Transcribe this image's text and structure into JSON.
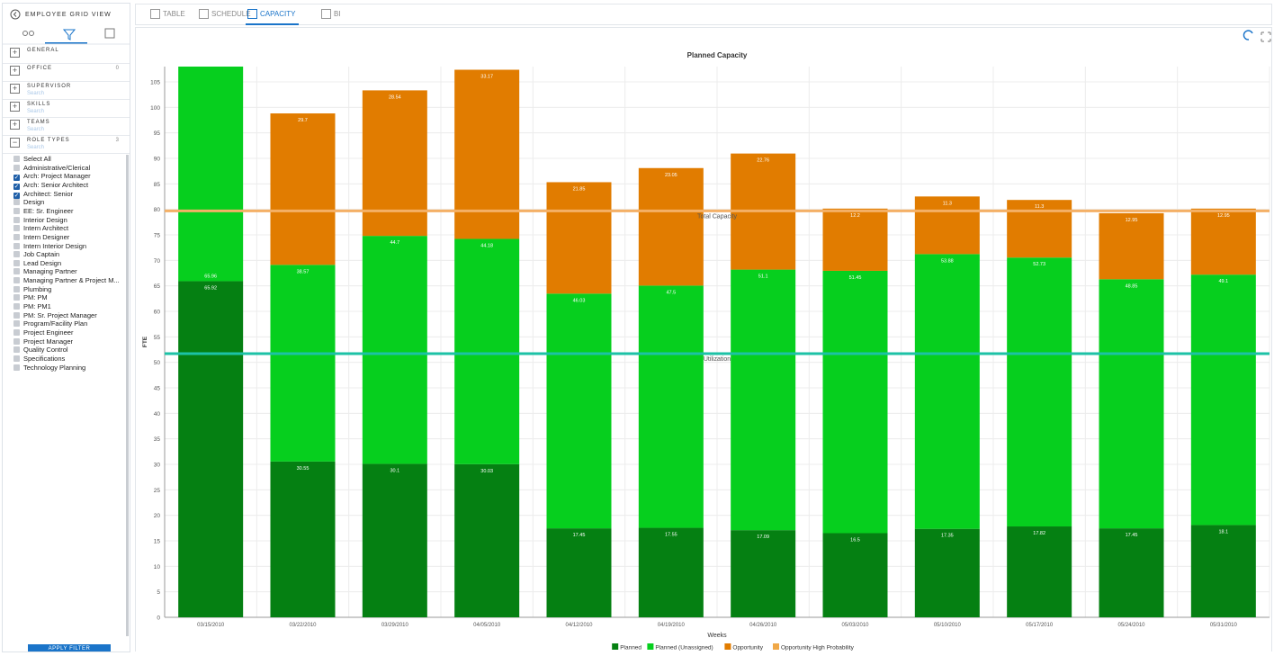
{
  "sidebar": {
    "title": "EMPLOYEE GRID VIEW",
    "sections": [
      {
        "label": "GENERAL"
      },
      {
        "label": "OFFICE",
        "count": 0
      },
      {
        "label": "SUPERVISOR",
        "placeholder": "Search"
      },
      {
        "label": "SKILLS",
        "placeholder": "Search"
      },
      {
        "label": "TEAMS",
        "placeholder": "Search"
      },
      {
        "label": "ROLE TYPES",
        "placeholder": "Search",
        "count": 3,
        "expanded": true
      }
    ],
    "items": [
      {
        "label": "Select All",
        "checked": false
      },
      {
        "label": "Administrative/Clerical",
        "checked": false
      },
      {
        "label": "Arch: Project Manager",
        "checked": true
      },
      {
        "label": "Arch: Senior Architect",
        "checked": true
      },
      {
        "label": "Architect: Senior",
        "checked": true
      },
      {
        "label": "Design",
        "checked": false
      },
      {
        "label": "EE: Sr. Engineer",
        "checked": false
      },
      {
        "label": "Interior Design",
        "checked": false
      },
      {
        "label": "Intern Architect",
        "checked": false
      },
      {
        "label": "Intern Designer",
        "checked": false
      },
      {
        "label": "Intern Interior Design",
        "checked": false
      },
      {
        "label": "Job Captain",
        "checked": false
      },
      {
        "label": "Lead Design",
        "checked": false
      },
      {
        "label": "Managing Partner",
        "checked": false
      },
      {
        "label": "Managing Partner & Project M...",
        "checked": false
      },
      {
        "label": "Plumbing",
        "checked": false
      },
      {
        "label": "PM: PM",
        "checked": false
      },
      {
        "label": "PM: PM1",
        "checked": false
      },
      {
        "label": "PM: Sr. Project Manager",
        "checked": false
      },
      {
        "label": "Program/Facility Plan",
        "checked": false
      },
      {
        "label": "Project Engineer",
        "checked": false
      },
      {
        "label": "Project Manager",
        "checked": false
      },
      {
        "label": "Quality Control",
        "checked": false
      },
      {
        "label": "Specifications",
        "checked": false
      },
      {
        "label": "Technology Planning",
        "checked": false
      }
    ],
    "button": "APPLY FILTER"
  },
  "tabs": [
    {
      "label": "TABLE",
      "active": false
    },
    {
      "label": "SCHEDULE",
      "active": false
    },
    {
      "label": "CAPACITY",
      "active": true
    },
    {
      "label": "BI",
      "active": false
    }
  ],
  "chart_data": {
    "type": "bar",
    "stacked": true,
    "title": "Planned Capacity",
    "xlabel": "Weeks",
    "ylabel": "FTE",
    "categories": [
      "03/15/2010",
      "03/22/2010",
      "03/29/2010",
      "04/05/2010",
      "04/12/2010",
      "04/19/2010",
      "04/26/2010",
      "05/03/2010",
      "05/10/2010",
      "05/17/2010",
      "05/24/2010",
      "05/31/2010"
    ],
    "series": [
      {
        "name": "Planned",
        "color": "#058012",
        "values": [
          65.92,
          30.55,
          30.1,
          30.03,
          17.45,
          17.55,
          17.09,
          16.5,
          17.35,
          17.82,
          17.45,
          18.1
        ]
      },
      {
        "name": "Planned (Unassigned)",
        "color": "#06cf1e",
        "values": [
          65.96,
          38.57,
          44.7,
          44.18,
          46.03,
          47.5,
          51.1,
          51.45,
          53.88,
          52.73,
          48.85,
          49.1
        ]
      },
      {
        "name": "Opportunity",
        "color": "#e17c00",
        "values": [
          null,
          29.7,
          28.54,
          33.17,
          21.85,
          23.05,
          22.76,
          12.2,
          11.3,
          11.3,
          12.95,
          12.95
        ]
      },
      {
        "name": "Opportunity High Probability",
        "color": "#f0a848",
        "values": [
          null,
          null,
          null,
          null,
          null,
          null,
          null,
          null,
          null,
          null,
          null,
          null
        ]
      }
    ],
    "reference_lines": [
      {
        "label": "Total Capacity",
        "value": 79.7,
        "color": "#f4b066"
      },
      {
        "label": "Utilization",
        "value": 51.7,
        "color": "#1cc2a6"
      }
    ],
    "ylim": [
      0,
      108
    ],
    "yticks": [
      0,
      5,
      10,
      15,
      20,
      25,
      30,
      35,
      40,
      45,
      50,
      55,
      60,
      65,
      70,
      75,
      80,
      85,
      90,
      95,
      100,
      105
    ],
    "grid": true,
    "legend": "bottom"
  }
}
